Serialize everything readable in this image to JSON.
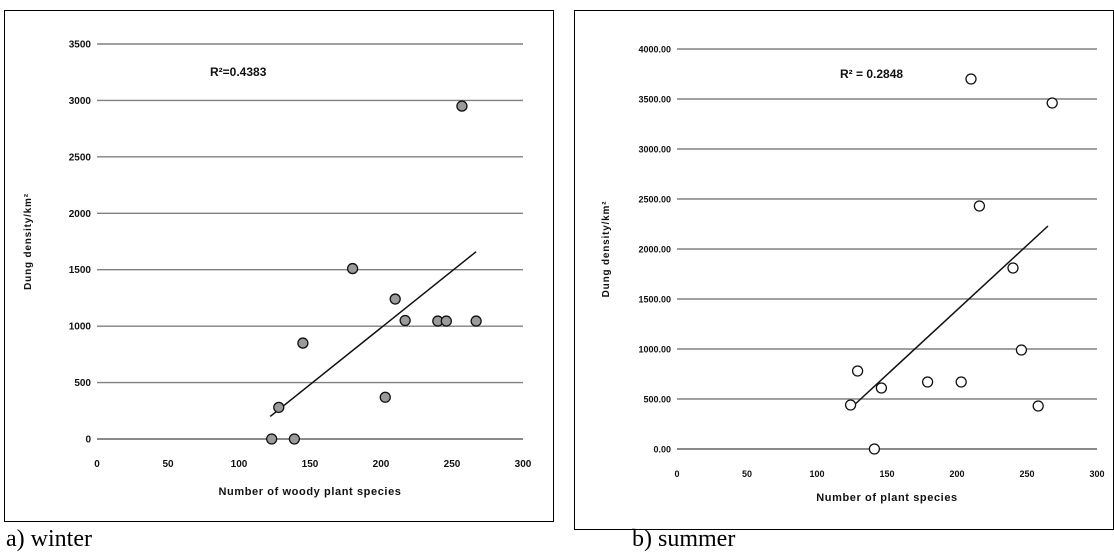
{
  "chart_data": [
    {
      "type": "scatter",
      "ylabel": "Dung density/km²",
      "xlabel": "Number of woody plant species",
      "annotation": "R²=0.4383",
      "caption": "a) winter",
      "xlim": [
        0,
        300
      ],
      "ylim": [
        0,
        3500
      ],
      "xticks": [
        "0",
        "50",
        "100",
        "150",
        "200",
        "250",
        "300"
      ],
      "yticks": [
        "0",
        "500",
        "1000",
        "1500",
        "2000",
        "2500",
        "3000",
        "3500"
      ],
      "xtick_values": [
        0,
        50,
        100,
        150,
        200,
        250,
        300
      ],
      "ytick_values": [
        0,
        500,
        1000,
        1500,
        2000,
        2500,
        3000,
        3500
      ],
      "points": [
        {
          "x": 123,
          "y": 0
        },
        {
          "x": 128,
          "y": 280
        },
        {
          "x": 139,
          "y": 0
        },
        {
          "x": 145,
          "y": 850
        },
        {
          "x": 180,
          "y": 1510
        },
        {
          "x": 203,
          "y": 370
        },
        {
          "x": 210,
          "y": 1240
        },
        {
          "x": 217,
          "y": 1050
        },
        {
          "x": 240,
          "y": 1045
        },
        {
          "x": 246,
          "y": 1045
        },
        {
          "x": 257,
          "y": 2950
        },
        {
          "x": 267,
          "y": 1045
        }
      ],
      "trendline": [
        {
          "x": 122,
          "y": 200
        },
        {
          "x": 267,
          "y": 1660
        }
      ],
      "marker_style": "filled",
      "marker_color": "#9a9a9a",
      "grid": true
    },
    {
      "type": "scatter",
      "ylabel": "Dung density/km²",
      "xlabel": "Number of plant species",
      "annotation": "R² = 0.2848",
      "caption": "b) summer",
      "xlim": [
        0,
        300
      ],
      "ylim": [
        0,
        4000
      ],
      "xticks": [
        "0",
        "50",
        "100",
        "150",
        "200",
        "250",
        "300"
      ],
      "yticks": [
        "0.00",
        "500.00",
        "1000.00",
        "1500.00",
        "2000.00",
        "2500.00",
        "3000.00",
        "3500.00",
        "4000.00"
      ],
      "xtick_values": [
        0,
        50,
        100,
        150,
        200,
        250,
        300
      ],
      "ytick_values": [
        0,
        500,
        1000,
        1500,
        2000,
        2500,
        3000,
        3500,
        4000
      ],
      "points": [
        {
          "x": 124,
          "y": 440
        },
        {
          "x": 129,
          "y": 780
        },
        {
          "x": 141,
          "y": 0
        },
        {
          "x": 146,
          "y": 610
        },
        {
          "x": 179,
          "y": 670
        },
        {
          "x": 203,
          "y": 670
        },
        {
          "x": 210,
          "y": 3700
        },
        {
          "x": 216,
          "y": 2430
        },
        {
          "x": 240,
          "y": 1810
        },
        {
          "x": 246,
          "y": 990
        },
        {
          "x": 258,
          "y": 430
        },
        {
          "x": 268,
          "y": 3460
        }
      ],
      "trendline": [
        {
          "x": 125,
          "y": 420
        },
        {
          "x": 265,
          "y": 2230
        }
      ],
      "marker_style": "hollow",
      "marker_color": "#ffffff",
      "grid": true
    }
  ]
}
